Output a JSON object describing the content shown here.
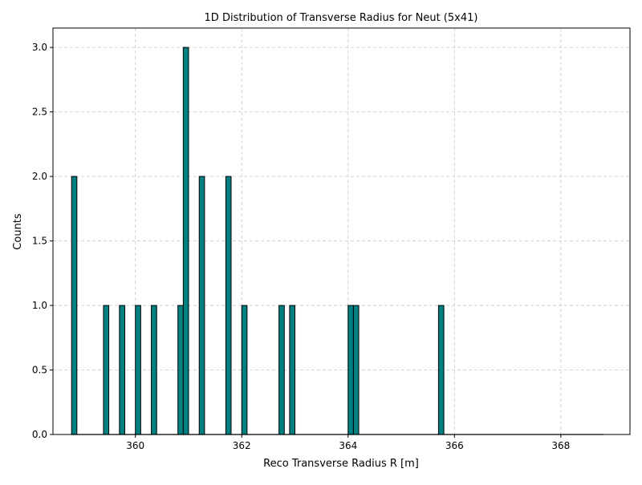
{
  "chart_data": {
    "type": "bar",
    "title": "1D Distribution of Transverse Radius for Neut (5x41)",
    "xlabel": "Reco Transverse Radius R [m]",
    "ylabel": "Counts",
    "xlim": [
      358.45,
      369.3
    ],
    "ylim": [
      0,
      3.15
    ],
    "grid": true,
    "bin_width": 0.1,
    "hist_range": [
      358.8,
      368.8
    ],
    "bar_color": "#008080",
    "edge_color": "#000000",
    "x_ticks": [
      "360",
      "362",
      "364",
      "366",
      "368"
    ],
    "y_ticks": [
      "0.0",
      "0.5",
      "1.0",
      "1.5",
      "2.0",
      "2.5",
      "3.0"
    ],
    "bins": [
      {
        "x": 358.8,
        "count": 2
      },
      {
        "x": 359.4,
        "count": 1
      },
      {
        "x": 359.7,
        "count": 1
      },
      {
        "x": 360.0,
        "count": 1
      },
      {
        "x": 360.3,
        "count": 1
      },
      {
        "x": 360.8,
        "count": 1
      },
      {
        "x": 360.9,
        "count": 3
      },
      {
        "x": 361.2,
        "count": 2
      },
      {
        "x": 361.7,
        "count": 2
      },
      {
        "x": 362.0,
        "count": 1
      },
      {
        "x": 362.7,
        "count": 1
      },
      {
        "x": 362.9,
        "count": 1
      },
      {
        "x": 364.0,
        "count": 1
      },
      {
        "x": 364.1,
        "count": 1
      },
      {
        "x": 365.7,
        "count": 1
      }
    ]
  }
}
